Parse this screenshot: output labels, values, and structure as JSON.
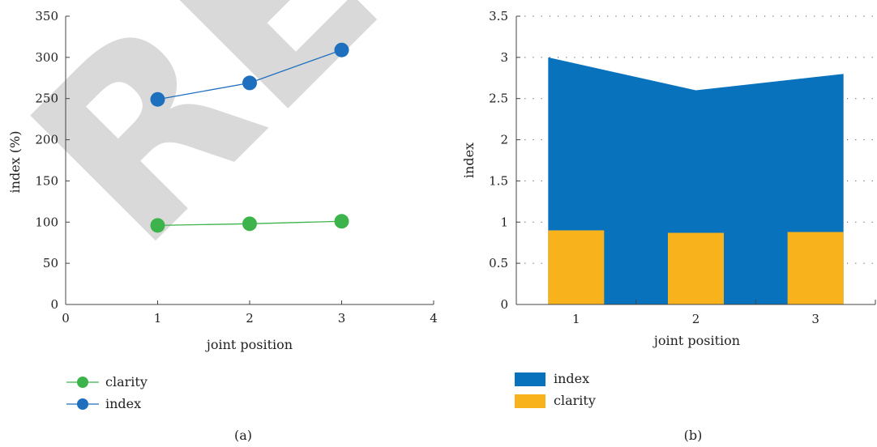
{
  "chart_data": [
    {
      "panel_label": "(a)",
      "type": "line",
      "xlabel": "joint position",
      "ylabel": "index (%)",
      "xlim": [
        0,
        4
      ],
      "ylim": [
        0,
        350
      ],
      "xticks": [
        "0",
        "1",
        "2",
        "3",
        "4"
      ],
      "yticks": [
        "0",
        "50",
        "100",
        "150",
        "200",
        "250",
        "300",
        "350"
      ],
      "grid": false,
      "legend_position": "bottom-left",
      "colors": {
        "clarity": "#3cb44b",
        "index": "#1f6fbf"
      },
      "series": [
        {
          "name": "clarity",
          "x": [
            1,
            2,
            3
          ],
          "y": [
            96,
            98,
            101
          ]
        },
        {
          "name": "index",
          "x": [
            1,
            2,
            3
          ],
          "y": [
            249,
            269,
            309
          ]
        }
      ],
      "watermark": "RE"
    },
    {
      "panel_label": "(b)",
      "type": "bar",
      "xlabel": "joint position",
      "ylabel": "index",
      "categories": [
        "1",
        "2",
        "3"
      ],
      "ylim": [
        0,
        3.5
      ],
      "yticks": [
        "0",
        "0.5",
        "1",
        "1.5",
        "2",
        "2.5",
        "3",
        "3.5"
      ],
      "grid": true,
      "legend_position": "bottom-left",
      "colors": {
        "index": "#0872bd",
        "clarity": "#f8b21b"
      },
      "series": [
        {
          "name": "index",
          "render": "area",
          "values": [
            3.0,
            2.6,
            2.8
          ]
        },
        {
          "name": "clarity",
          "render": "bar",
          "values": [
            0.9,
            0.87,
            0.88
          ]
        }
      ]
    }
  ]
}
